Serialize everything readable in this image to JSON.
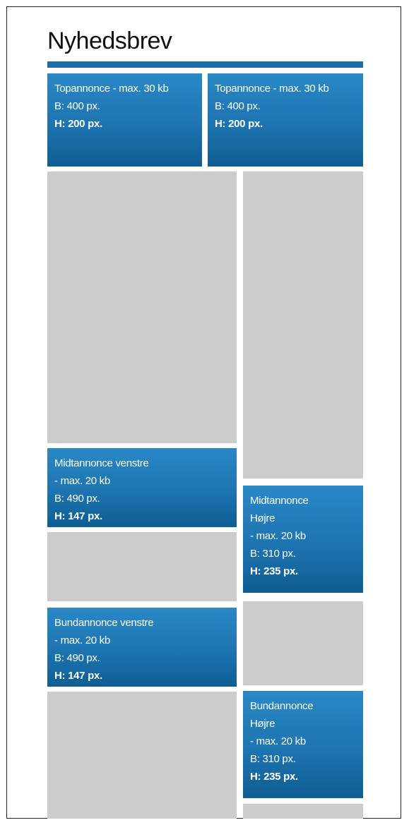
{
  "title": "Nyhedsbrev",
  "colors": {
    "accent": "#1a6fa8",
    "placeholder": "#cccccc"
  },
  "ads": {
    "top_left": {
      "lines": [
        "Topannonce - max. 30 kb",
        "B: 400 px.",
        "H: 200 px."
      ]
    },
    "top_right": {
      "lines": [
        "Topannonce - max. 30 kb",
        "B: 400 px.",
        "H: 200 px."
      ]
    },
    "mid_left": {
      "lines": [
        "Midtannonce venstre",
        "- max. 20 kb",
        "B: 490 px.",
        "H: 147 px."
      ]
    },
    "mid_right": {
      "lines": [
        "Midtannonce",
        "Højre",
        "- max. 20 kb",
        "B: 310 px.",
        "H: 235 px."
      ]
    },
    "bottom_left": {
      "lines": [
        "Bundannonce venstre",
        "- max. 20 kb",
        "B: 490 px.",
        "H: 147 px."
      ]
    },
    "bottom_right": {
      "lines": [
        "Bundannonce",
        "Højre",
        "- max. 20 kb",
        "B: 310 px.",
        "H: 235 px."
      ]
    }
  }
}
